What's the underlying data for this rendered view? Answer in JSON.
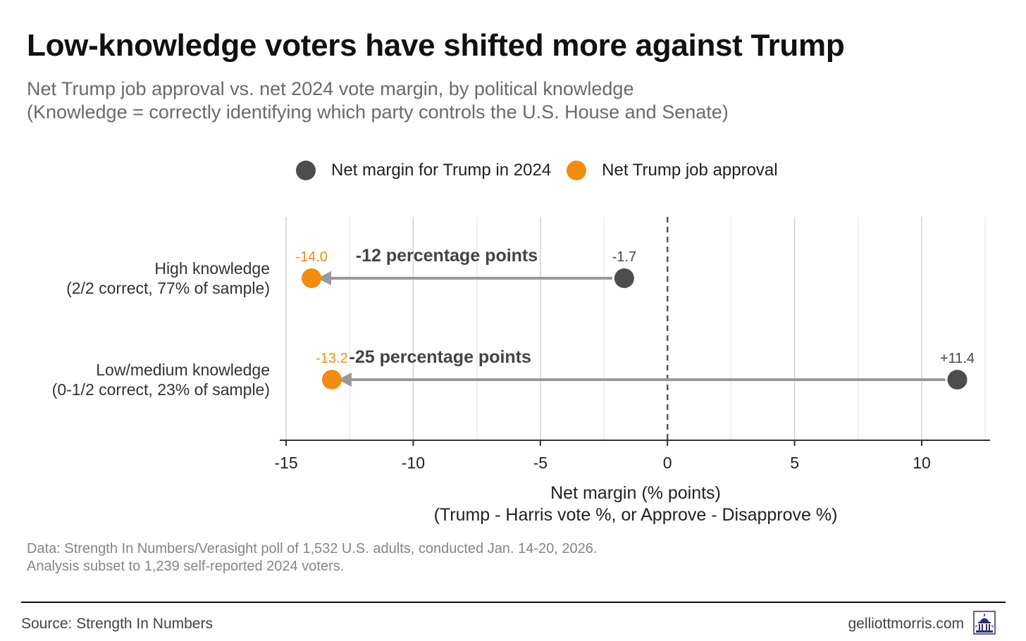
{
  "header": {
    "title": "Low-knowledge voters have shifted more against Trump",
    "subtitle_line1": "Net Trump job approval vs. net 2024 vote margin, by political knowledge",
    "subtitle_line2": "(Knowledge = correctly identifying which party controls the U.S. House and Senate)"
  },
  "legend": {
    "items": [
      {
        "label": "Net margin for Trump in 2024",
        "color": "#4d4d4d"
      },
      {
        "label": "Net Trump job approval",
        "color": "#f28c0f"
      }
    ]
  },
  "colors": {
    "vote_dot": "#4d4d4d",
    "approval_dot": "#f28c0f",
    "arrow": "#9a9a9a",
    "grid_major": "#d0d0d0",
    "grid_minor": "#ececec",
    "zero_line": "#555555",
    "axis": "#333333"
  },
  "chart_data": {
    "type": "dumbbell",
    "orientation": "horizontal",
    "xlim": [
      -15,
      12.5
    ],
    "xticks": [
      "-15",
      "-10",
      "-5",
      "0",
      "5",
      "10"
    ],
    "xtick_values": [
      -15,
      -10,
      -5,
      0,
      5,
      10
    ],
    "xlabel_line1": "Net margin (% points)",
    "xlabel_line2": "(Trump - Harris vote %, or Approve - Disapprove %)",
    "reference_line": 0,
    "categories": [
      {
        "label_line1": "High knowledge",
        "label_line2": "(2/2 correct, 77% of sample)",
        "vote_margin": -1.7,
        "vote_label": "-1.7",
        "approval": -14.0,
        "approval_label": "-14.0",
        "shift_label": "-12 percentage points"
      },
      {
        "label_line1": "Low/medium knowledge",
        "label_line2": "(0-1/2 correct, 23% of sample)",
        "vote_margin": 11.4,
        "vote_label": "+11.4",
        "approval": -13.2,
        "approval_label": "-13.2",
        "shift_label": "-25 percentage points"
      }
    ]
  },
  "notes": {
    "line1": "Data: Strength In Numbers/Verasight poll of 1,532 U.S. adults, conducted Jan. 14-20, 2026.",
    "line2": "Analysis subset to 1,239 self-reported 2024 voters."
  },
  "footer": {
    "source": "Source: Strength In Numbers",
    "site": "gelliottmorris.com",
    "logo_icon": "capitol-building-icon"
  }
}
